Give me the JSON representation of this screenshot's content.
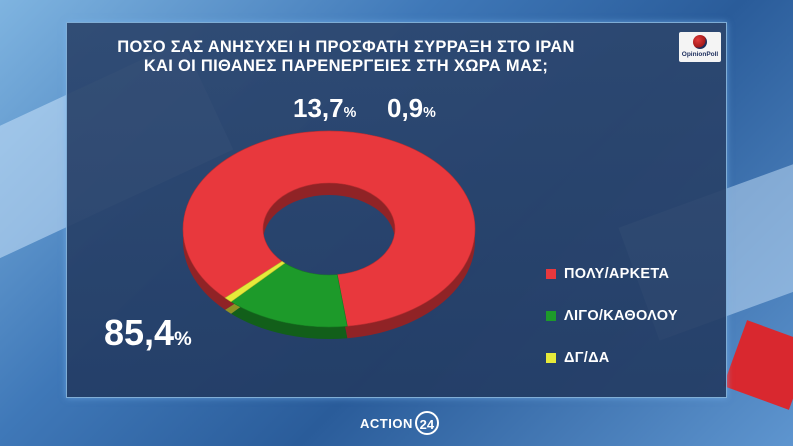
{
  "title_lines": [
    "ΠΟΣΟ ΣΑΣ ΑΝΗΣΥΧΕΙ Η ΠΡΟΣΦΑΤΗ ΣΥΡΡΑΞΗ ΣΤΟ ΙΡΑΝ",
    "ΚΑΙ ΟΙ ΠΙΘΑΝΕΣ ΠΑΡΕΝΕΡΓΕΙΕΣ ΣΤΗ ΧΩΡΑ ΜΑΣ;"
  ],
  "logo_text": "OpinionPoll",
  "brand": {
    "name": "ACTION",
    "number": "24"
  },
  "chart_data": {
    "type": "pie",
    "style": "donut",
    "title": "ΠΟΣΟ ΣΑΣ ΑΝΗΣΥΧΕΙ Η ΠΡΟΣΦΑΤΗ ΣΥΡΡΑΞΗ ΣΤΟ ΙΡΑΝ ΚΑΙ ΟΙ ΠΙΘΑΝΕΣ ΠΑΡΕΝΕΡΓΕΙΕΣ ΣΤΗ ΧΩΡΑ ΜΑΣ;",
    "categories": [
      "ΠΟΛΥ/ΑΡΚΕΤΑ",
      "ΛΙΓΟ/ΚΑΘΟΛΟΥ",
      "ΔΓ/ΔΑ"
    ],
    "values": [
      85.4,
      13.7,
      0.9
    ],
    "value_labels": [
      "85,4",
      "13,7",
      "0,9"
    ],
    "unit": "%",
    "colors": [
      "#e8383d",
      "#1d9a2a",
      "#e6ea3a"
    ],
    "legend_position": "right"
  }
}
